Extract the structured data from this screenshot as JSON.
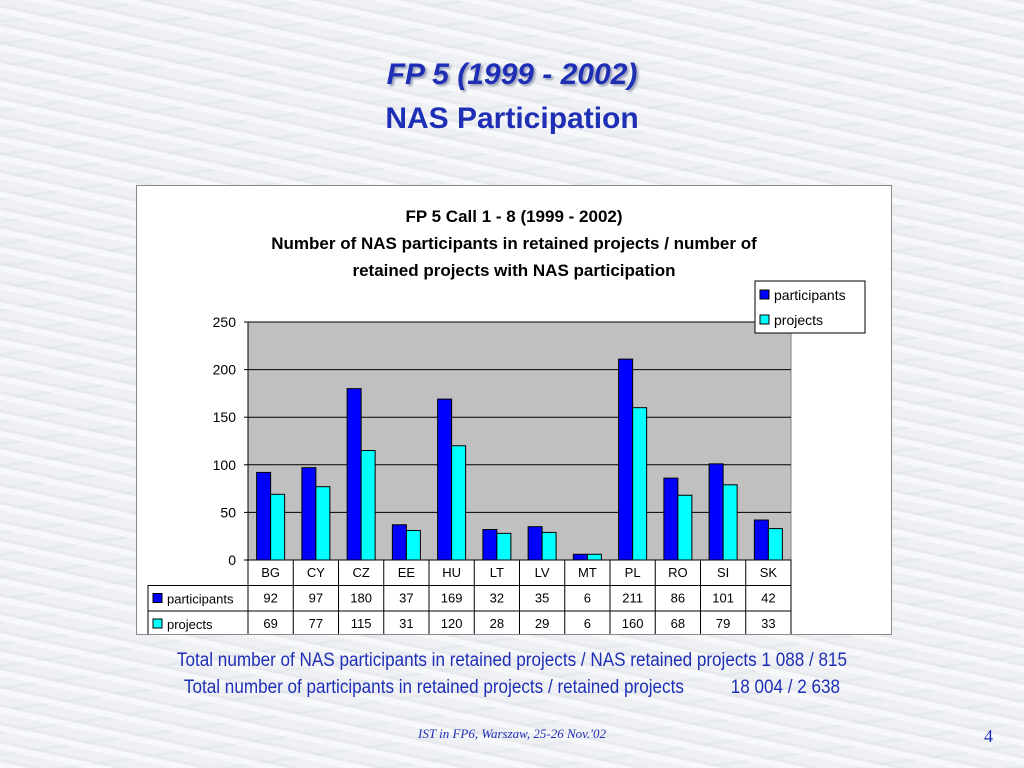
{
  "slide": {
    "title_line1": "FP 5 (1999 - 2002)",
    "title_line2": "NAS Participation",
    "footnote_line1": "Total number of NAS participants in retained projects / NAS retained projects 1 088 / 815",
    "footnote_line2_label": "Total number of participants in retained projects / retained projects",
    "footnote_line2_value": "18 004 / 2 638",
    "footer": "IST in FP6, Warszaw, 25-26 Nov.'02",
    "page_number": "4"
  },
  "chart_data": {
    "type": "bar",
    "title_line1": "FP 5 Call 1 - 8 (1999 - 2002)",
    "title_line2": "Number of NAS participants in retained projects / number of",
    "title_line3": "retained projects with NAS participation",
    "categories": [
      "BG",
      "CY",
      "CZ",
      "EE",
      "HU",
      "LT",
      "LV",
      "MT",
      "PL",
      "RO",
      "SI",
      "SK"
    ],
    "series": [
      {
        "name": "participants",
        "color": "#0000ff",
        "values": [
          92,
          97,
          180,
          37,
          169,
          32,
          35,
          6,
          211,
          86,
          101,
          42
        ]
      },
      {
        "name": "projects",
        "color": "#00ffff",
        "values": [
          69,
          77,
          115,
          31,
          120,
          28,
          29,
          6,
          160,
          68,
          79,
          33
        ]
      }
    ],
    "ylim": [
      0,
      250
    ],
    "yticks": [
      0,
      50,
      100,
      150,
      200,
      250
    ],
    "plot_background": "#c0c0c0",
    "grid": true,
    "legend_position": "top-right",
    "data_table": true
  }
}
